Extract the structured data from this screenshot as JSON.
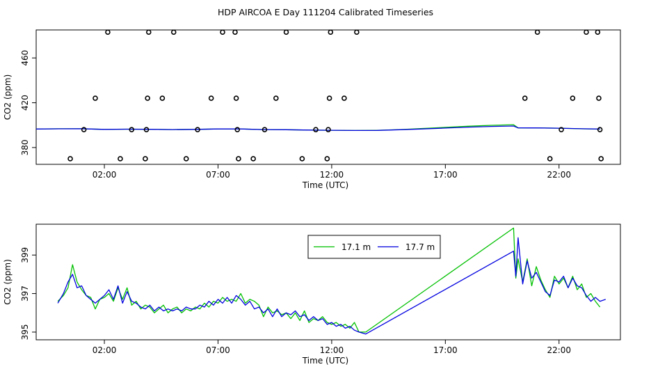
{
  "title": "HDP AIRCOA E  Day 111204  Calibrated Timeseries",
  "colors": {
    "series1": "#00c000",
    "series2": "#0000e0",
    "axis": "#000000"
  },
  "chart_data": [
    {
      "type": "scatter",
      "xlabel": "Time (UTC)",
      "ylabel": "CO2 (ppm)",
      "x_ticks": [
        2,
        7,
        12,
        17,
        22
      ],
      "x_tick_labels": [
        "02:00",
        "07:00",
        "12:00",
        "17:00",
        "22:00"
      ],
      "y_ticks": [
        380,
        420,
        460
      ],
      "y_tick_labels": [
        "380",
        "420",
        "460"
      ],
      "xlim": [
        -1.0,
        24.7
      ],
      "ylim": [
        365,
        485
      ],
      "points": [
        [
          0.5,
          370
        ],
        [
          1.1,
          396
        ],
        [
          1.6,
          424
        ],
        [
          2.15,
          483
        ],
        [
          2.7,
          370
        ],
        [
          3.2,
          396
        ],
        [
          3.8,
          370
        ],
        [
          3.85,
          396
        ],
        [
          3.9,
          424
        ],
        [
          3.95,
          483
        ],
        [
          4.55,
          424
        ],
        [
          5.05,
          483
        ],
        [
          5.6,
          370
        ],
        [
          6.1,
          396
        ],
        [
          6.7,
          424
        ],
        [
          7.2,
          483
        ],
        [
          7.75,
          483
        ],
        [
          7.8,
          424
        ],
        [
          7.85,
          396
        ],
        [
          7.9,
          370
        ],
        [
          8.55,
          370
        ],
        [
          9.05,
          396
        ],
        [
          9.55,
          424
        ],
        [
          10.0,
          483
        ],
        [
          10.7,
          370
        ],
        [
          11.3,
          396
        ],
        [
          11.8,
          370
        ],
        [
          11.85,
          396
        ],
        [
          11.9,
          424
        ],
        [
          11.95,
          483
        ],
        [
          12.55,
          424
        ],
        [
          13.1,
          483
        ],
        [
          20.5,
          424
        ],
        [
          21.05,
          483
        ],
        [
          21.6,
          370
        ],
        [
          22.1,
          396
        ],
        [
          22.6,
          424
        ],
        [
          23.2,
          483
        ],
        [
          23.7,
          483
        ],
        [
          23.75,
          424
        ],
        [
          23.8,
          396
        ],
        [
          23.85,
          370
        ]
      ],
      "series": [
        {
          "x": [
            -1.0,
            0,
            1,
            2,
            3,
            4,
            5,
            6,
            7,
            8,
            9,
            10,
            11,
            12,
            13,
            14,
            15,
            16,
            17,
            18,
            19,
            20.0,
            20.2,
            21,
            22,
            23,
            23.8
          ],
          "values": [
            396.5,
            396.8,
            396.8,
            396.2,
            396.4,
            396.3,
            396.0,
            396.2,
            396.6,
            396.6,
            396.0,
            395.9,
            395.6,
            395.4,
            395.2,
            395.4,
            396.0,
            397.0,
            398.0,
            399.0,
            399.8,
            400.4,
            397.5,
            397.5,
            397.3,
            396.7,
            396.4
          ]
        },
        {
          "x": [
            -1.0,
            0,
            1,
            2,
            3,
            4,
            5,
            6,
            7,
            8,
            9,
            10,
            11,
            12,
            13,
            14,
            15,
            16,
            17,
            18,
            19,
            20.0,
            20.2,
            21,
            22,
            23,
            23.8
          ],
          "values": [
            396.5,
            396.7,
            396.8,
            396.2,
            396.4,
            396.3,
            396.0,
            396.2,
            396.6,
            396.6,
            396.0,
            395.9,
            395.6,
            395.4,
            395.2,
            395.3,
            395.9,
            396.6,
            397.4,
            398.2,
            398.8,
            399.2,
            397.6,
            397.5,
            397.3,
            396.8,
            396.5
          ]
        }
      ]
    },
    {
      "type": "line",
      "xlabel": "Time (UTC)",
      "ylabel": "CO2 (ppm)",
      "x_ticks": [
        2,
        7,
        12,
        17,
        22
      ],
      "x_tick_labels": [
        "02:00",
        "07:00",
        "12:00",
        "17:00",
        "22:00"
      ],
      "y_ticks": [
        395,
        397,
        399
      ],
      "y_tick_labels": [
        "395",
        "397",
        "399"
      ],
      "xlim": [
        -1.0,
        24.7
      ],
      "ylim": [
        394.6,
        400.6
      ],
      "legend_position": "top-center",
      "series": [
        {
          "name": "17.1 m",
          "color": "#00c000",
          "x": [
            -0.05,
            0.2,
            0.4,
            0.6,
            0.8,
            1.0,
            1.2,
            1.4,
            1.6,
            1.8,
            2.0,
            2.2,
            2.4,
            2.6,
            2.8,
            3.0,
            3.2,
            3.4,
            3.6,
            3.8,
            4.0,
            4.2,
            4.4,
            4.6,
            4.8,
            5.0,
            5.2,
            5.4,
            5.6,
            5.8,
            6.0,
            6.2,
            6.4,
            6.6,
            6.8,
            7.0,
            7.2,
            7.4,
            7.6,
            7.8,
            8.0,
            8.2,
            8.4,
            8.6,
            8.8,
            9.0,
            9.2,
            9.4,
            9.6,
            9.8,
            10.0,
            10.2,
            10.4,
            10.6,
            10.8,
            11.0,
            11.2,
            11.4,
            11.6,
            11.8,
            12.0,
            12.2,
            12.4,
            12.6,
            12.8,
            13.0,
            13.2,
            13.5,
            20.0,
            20.1,
            20.2,
            20.4,
            20.6,
            20.8,
            21.0,
            21.2,
            21.4,
            21.6,
            21.8,
            22.0,
            22.2,
            22.4,
            22.6,
            22.8,
            23.0,
            23.2,
            23.4,
            23.6,
            23.8
          ],
          "values": [
            396.6,
            396.9,
            397.3,
            398.5,
            397.6,
            397.2,
            396.9,
            396.8,
            396.2,
            396.7,
            396.8,
            397.0,
            396.6,
            397.3,
            396.7,
            397.3,
            396.4,
            396.6,
            396.2,
            396.4,
            396.3,
            396.0,
            396.2,
            396.4,
            396.0,
            396.2,
            396.3,
            396.0,
            396.2,
            396.1,
            396.3,
            396.2,
            396.5,
            396.3,
            396.6,
            396.5,
            396.8,
            396.6,
            396.7,
            396.6,
            397.0,
            396.5,
            396.7,
            396.6,
            396.4,
            395.8,
            396.3,
            396.0,
            396.1,
            395.9,
            396.0,
            395.7,
            396.0,
            395.6,
            396.1,
            395.5,
            395.7,
            395.6,
            395.8,
            395.5,
            395.4,
            395.5,
            395.3,
            395.4,
            395.2,
            395.5,
            395.0,
            395.0,
            400.4,
            397.8,
            398.8,
            397.6,
            398.8,
            397.4,
            398.4,
            397.7,
            397.2,
            396.8,
            397.9,
            397.5,
            397.8,
            397.3,
            397.9,
            397.2,
            397.5,
            396.8,
            397.0,
            396.6,
            396.3
          ]
        },
        {
          "name": "17.7 m",
          "color": "#0000e0",
          "x": [
            -0.05,
            0.2,
            0.4,
            0.6,
            0.8,
            1.0,
            1.2,
            1.4,
            1.6,
            1.8,
            2.0,
            2.2,
            2.4,
            2.6,
            2.8,
            3.0,
            3.2,
            3.4,
            3.6,
            3.8,
            4.0,
            4.2,
            4.4,
            4.6,
            4.8,
            5.0,
            5.2,
            5.4,
            5.6,
            5.8,
            6.0,
            6.2,
            6.4,
            6.6,
            6.8,
            7.0,
            7.2,
            7.4,
            7.6,
            7.8,
            8.0,
            8.2,
            8.4,
            8.6,
            8.8,
            9.0,
            9.2,
            9.4,
            9.6,
            9.8,
            10.0,
            10.2,
            10.4,
            10.6,
            10.8,
            11.0,
            11.2,
            11.4,
            11.6,
            11.8,
            12.0,
            12.2,
            12.4,
            12.6,
            12.8,
            13.0,
            13.2,
            13.5,
            20.0,
            20.1,
            20.2,
            20.4,
            20.6,
            20.8,
            21.0,
            21.2,
            21.4,
            21.6,
            21.8,
            22.0,
            22.2,
            22.4,
            22.6,
            22.8,
            23.0,
            23.2,
            23.4,
            23.6,
            23.8,
            24.05
          ],
          "values": [
            396.5,
            397.0,
            397.6,
            398.0,
            397.3,
            397.4,
            396.9,
            396.7,
            396.5,
            396.7,
            396.9,
            397.2,
            396.7,
            397.4,
            396.5,
            397.1,
            396.6,
            396.5,
            396.3,
            396.2,
            396.4,
            396.1,
            396.3,
            396.1,
            396.2,
            396.1,
            396.2,
            396.1,
            396.3,
            396.2,
            396.2,
            396.4,
            396.3,
            396.6,
            396.4,
            396.7,
            396.5,
            396.8,
            396.5,
            396.9,
            396.7,
            396.4,
            396.6,
            396.2,
            396.3,
            396.0,
            396.2,
            395.8,
            396.2,
            395.8,
            396.0,
            395.9,
            396.1,
            395.8,
            395.9,
            395.6,
            395.8,
            395.6,
            395.7,
            395.4,
            395.5,
            395.3,
            395.4,
            395.2,
            395.3,
            395.1,
            395.0,
            394.9,
            399.2,
            397.9,
            399.9,
            397.5,
            398.7,
            397.8,
            398.1,
            397.6,
            397.1,
            396.9,
            397.7,
            397.6,
            397.9,
            397.3,
            397.8,
            397.4,
            397.3,
            396.9,
            396.6,
            396.8,
            396.6,
            396.7
          ]
        }
      ]
    }
  ]
}
